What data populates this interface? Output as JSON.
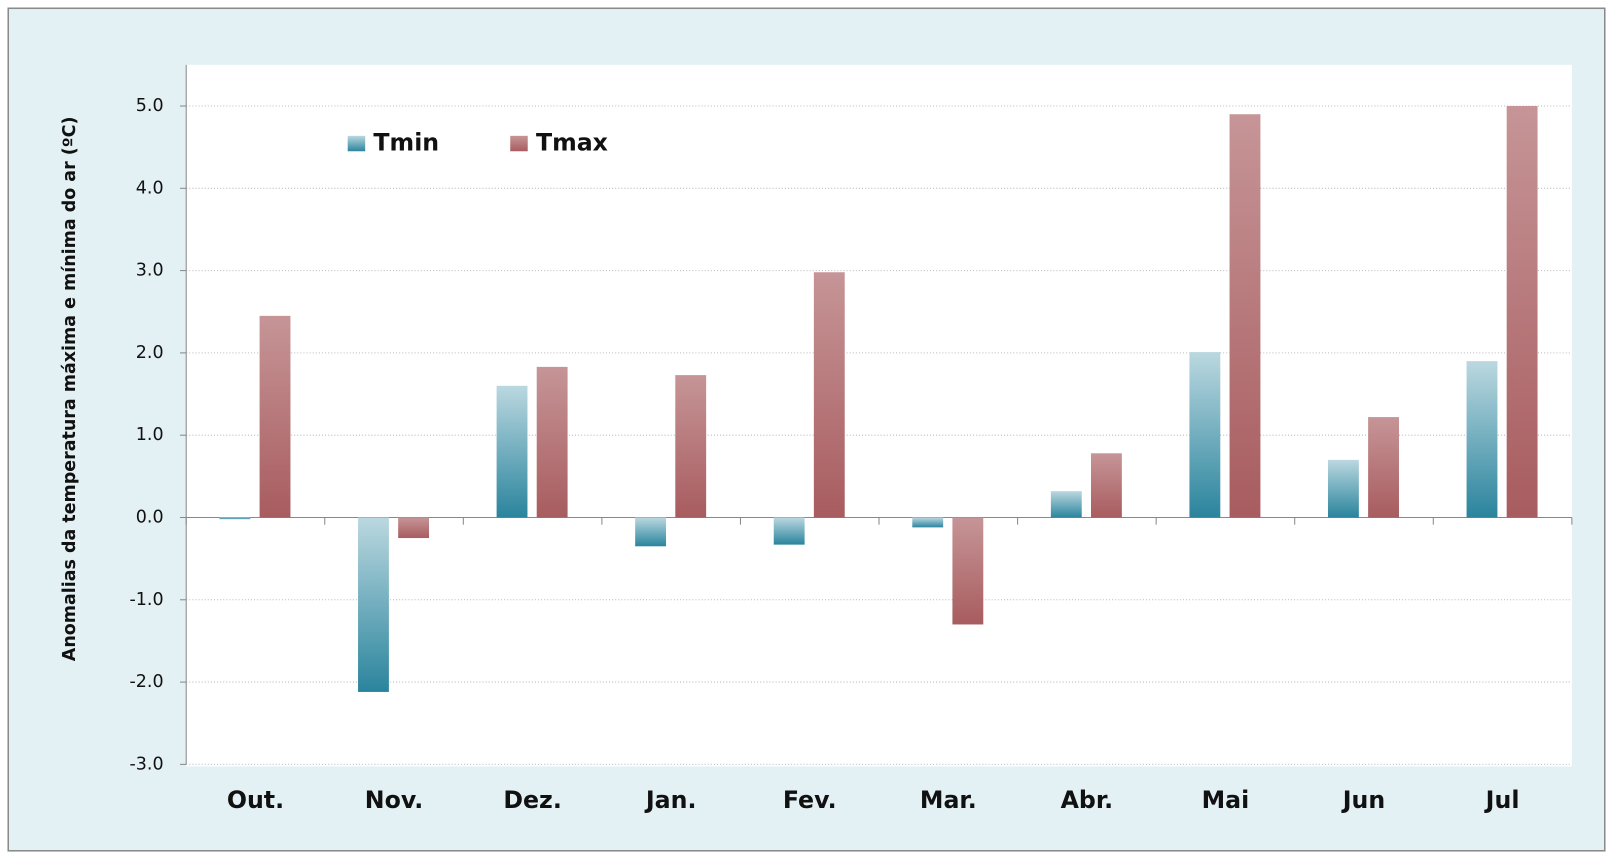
{
  "chart_data": {
    "type": "bar",
    "y_label": "Anomalias da temperatura máxima e mínima do ar (ºC)",
    "categories": [
      "Out.",
      "Nov.",
      "Dez.",
      "Jan.",
      "Fev.",
      "Mar.",
      "Abr.",
      "Mai",
      "Jun",
      "Jul"
    ],
    "series": [
      {
        "name": "Tmin",
        "color": "#2a849d",
        "values": [
          -0.02,
          -2.12,
          1.6,
          -0.35,
          -0.33,
          -0.12,
          0.32,
          2.01,
          0.7,
          1.9
        ]
      },
      {
        "name": "Tmax",
        "color": "#a85c5f",
        "values": [
          2.45,
          -0.25,
          1.83,
          1.73,
          2.98,
          -1.3,
          0.78,
          4.9,
          1.22,
          5.0
        ]
      }
    ],
    "ylim": [
      -3,
      5.5
    ],
    "yticks": [
      {
        "value": -3,
        "label": "-3.0"
      },
      {
        "value": -2,
        "label": "-2.0"
      },
      {
        "value": -1,
        "label": "-1.0"
      },
      {
        "value": 0,
        "label": "0.0"
      },
      {
        "value": 1,
        "label": "1.0"
      },
      {
        "value": 2,
        "label": "2.0"
      },
      {
        "value": 3,
        "label": "3.0"
      },
      {
        "value": 4,
        "label": "4.0"
      },
      {
        "value": 5,
        "label": "5.0"
      }
    ],
    "grid": true,
    "legend": "upper left"
  }
}
